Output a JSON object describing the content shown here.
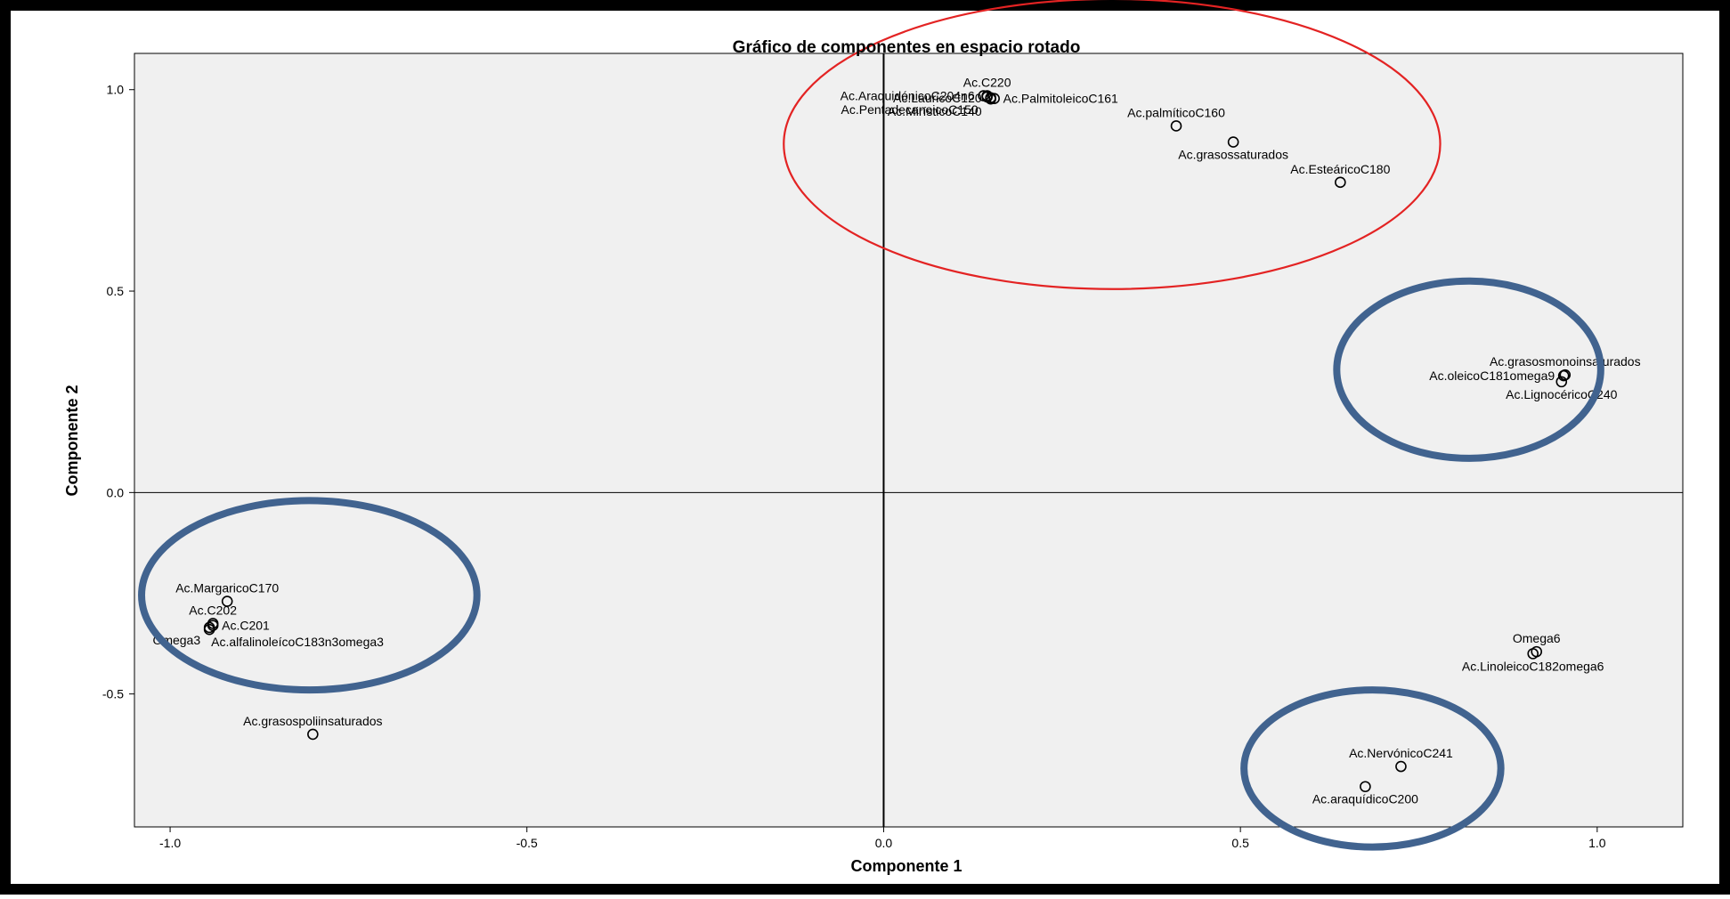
{
  "chart_data": {
    "type": "scatter",
    "title": "Gráfico de componentes en espacio rotado",
    "xlabel": "Componente 1",
    "ylabel": "Componente 2",
    "xlim": [
      -1.05,
      1.12
    ],
    "ylim": [
      -0.83,
      1.09
    ],
    "xticks": [
      "-1.0",
      "-0.5",
      "0.0",
      "0.5",
      "1.0"
    ],
    "xtick_values": [
      -1.0,
      -0.5,
      0.0,
      0.5,
      1.0
    ],
    "yticks": [
      "-0.5",
      "0.0",
      "0.5",
      "1.0"
    ],
    "ytick_values": [
      -0.5,
      0.0,
      0.5,
      1.0
    ],
    "grid": false,
    "reference_lines": {
      "x": 0.0,
      "y": 0.0
    },
    "points": [
      {
        "label": "Ac.AraquidónicoC204n6",
        "x": 0.14,
        "y": 0.985,
        "label_side": "left"
      },
      {
        "label": "Ac.C220",
        "x": 0.145,
        "y": 0.985,
        "label_side": "above"
      },
      {
        "label": "Ac.LauricoC120",
        "x": 0.15,
        "y": 0.98,
        "label_side": "left"
      },
      {
        "label": "Ac.PalmitoleicoC161",
        "x": 0.155,
        "y": 0.978,
        "label_side": "right"
      },
      {
        "label": "Ac.PentadecanoicoC150",
        "x": 0.145,
        "y": 0.982,
        "label_side": "left-below"
      },
      {
        "label": "Ac.MirísticoC140",
        "x": 0.15,
        "y": 0.977,
        "label_side": "left-below"
      },
      {
        "label": "Ac.palmíticoC160",
        "x": 0.41,
        "y": 0.91,
        "label_side": "above"
      },
      {
        "label": "Ac.grasossaturados",
        "x": 0.49,
        "y": 0.87,
        "label_side": "below"
      },
      {
        "label": "Ac.EsteáricoC180",
        "x": 0.64,
        "y": 0.77,
        "label_side": "above"
      },
      {
        "label": "Ac.grasosmonoinsaturados",
        "x": 0.955,
        "y": 0.292,
        "label_side": "above"
      },
      {
        "label": "Ac.oleicoC181omega9",
        "x": 0.953,
        "y": 0.29,
        "label_side": "left"
      },
      {
        "label": "Ac.LignocéricoC240",
        "x": 0.95,
        "y": 0.275,
        "label_side": "below"
      },
      {
        "label": "Ac.MargaricoC170",
        "x": -0.92,
        "y": -0.27,
        "label_side": "above"
      },
      {
        "label": "Ac.C202",
        "x": -0.94,
        "y": -0.325,
        "label_side": "above"
      },
      {
        "label": "Ac.C201",
        "x": -0.94,
        "y": -0.33,
        "label_side": "right"
      },
      {
        "label": "Omega3",
        "x": -0.945,
        "y": -0.335,
        "label_side": "left-below"
      },
      {
        "label": "Ac.alfalinoleícoC183n3omega3",
        "x": -0.945,
        "y": -0.34,
        "label_side": "right-below"
      },
      {
        "label": "Ac.grasospoliinsaturados",
        "x": -0.8,
        "y": -0.6,
        "label_side": "above"
      },
      {
        "label": "Omega6",
        "x": 0.915,
        "y": -0.395,
        "label_side": "above"
      },
      {
        "label": "Ac.LinoleicoC182omega6",
        "x": 0.91,
        "y": -0.4,
        "label_side": "below"
      },
      {
        "label": "Ac.NervónicoC241",
        "x": 0.725,
        "y": -0.68,
        "label_side": "above"
      },
      {
        "label": "Ac.araquídicoC200",
        "x": 0.675,
        "y": -0.73,
        "label_side": "below"
      }
    ],
    "highlight_ellipses": [
      {
        "color": "#e32323",
        "cx": 0.32,
        "cy": 0.865,
        "rx": 0.46,
        "ry": 0.36
      },
      {
        "color": "#41638f",
        "cx": 0.82,
        "cy": 0.305,
        "rx": 0.185,
        "ry": 0.22
      },
      {
        "color": "#41638f",
        "cx": -0.805,
        "cy": -0.255,
        "rx": 0.235,
        "ry": 0.235
      },
      {
        "color": "#41638f",
        "cx": 0.685,
        "cy": -0.685,
        "rx": 0.18,
        "ry": 0.195
      }
    ]
  }
}
